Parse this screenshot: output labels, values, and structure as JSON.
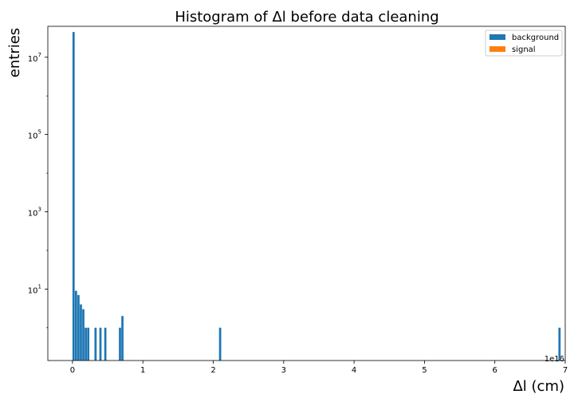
{
  "chart_data": {
    "type": "bar",
    "title": "Histogram of Δl before data cleaning",
    "xlabel": "Δl (cm)",
    "ylabel": "entries",
    "x_offset_label": "1e16",
    "xlim": [
      -0.35,
      7.0
    ],
    "ylim_log10": [
      -0.85,
      7.8
    ],
    "y_scale": "log",
    "x_ticks": [
      0,
      1,
      2,
      3,
      4,
      5,
      6,
      7
    ],
    "y_ticks": [
      {
        "value": 10,
        "label": "10",
        "sup": "1"
      },
      {
        "value": 1000,
        "label": "10",
        "sup": "3"
      },
      {
        "value": 100000,
        "label": "10",
        "sup": "5"
      },
      {
        "value": 10000000,
        "label": "10",
        "sup": "7"
      }
    ],
    "bin_width": 0.0347,
    "legend": {
      "position": "top-right",
      "entries": [
        {
          "name": "background",
          "color": "#1f77b4"
        },
        {
          "name": "signal",
          "color": "#ff7f0e"
        }
      ]
    },
    "series": [
      {
        "name": "background",
        "color": "#1f77b4",
        "bins": [
          {
            "x": 0.0,
            "count": 45000000
          },
          {
            "x": 0.0347,
            "count": 9
          },
          {
            "x": 0.0694,
            "count": 7
          },
          {
            "x": 0.1041,
            "count": 4
          },
          {
            "x": 0.1388,
            "count": 3
          },
          {
            "x": 0.1735,
            "count": 1
          },
          {
            "x": 0.2082,
            "count": 1
          },
          {
            "x": 0.3123,
            "count": 1
          },
          {
            "x": 0.3817,
            "count": 1
          },
          {
            "x": 0.4511,
            "count": 1
          },
          {
            "x": 0.6593,
            "count": 1
          },
          {
            "x": 0.694,
            "count": 2
          },
          {
            "x": 2.0819,
            "count": 1
          },
          {
            "x": 6.9031,
            "count": 1
          }
        ]
      },
      {
        "name": "signal",
        "color": "#ff7f0e",
        "bins": []
      }
    ]
  }
}
